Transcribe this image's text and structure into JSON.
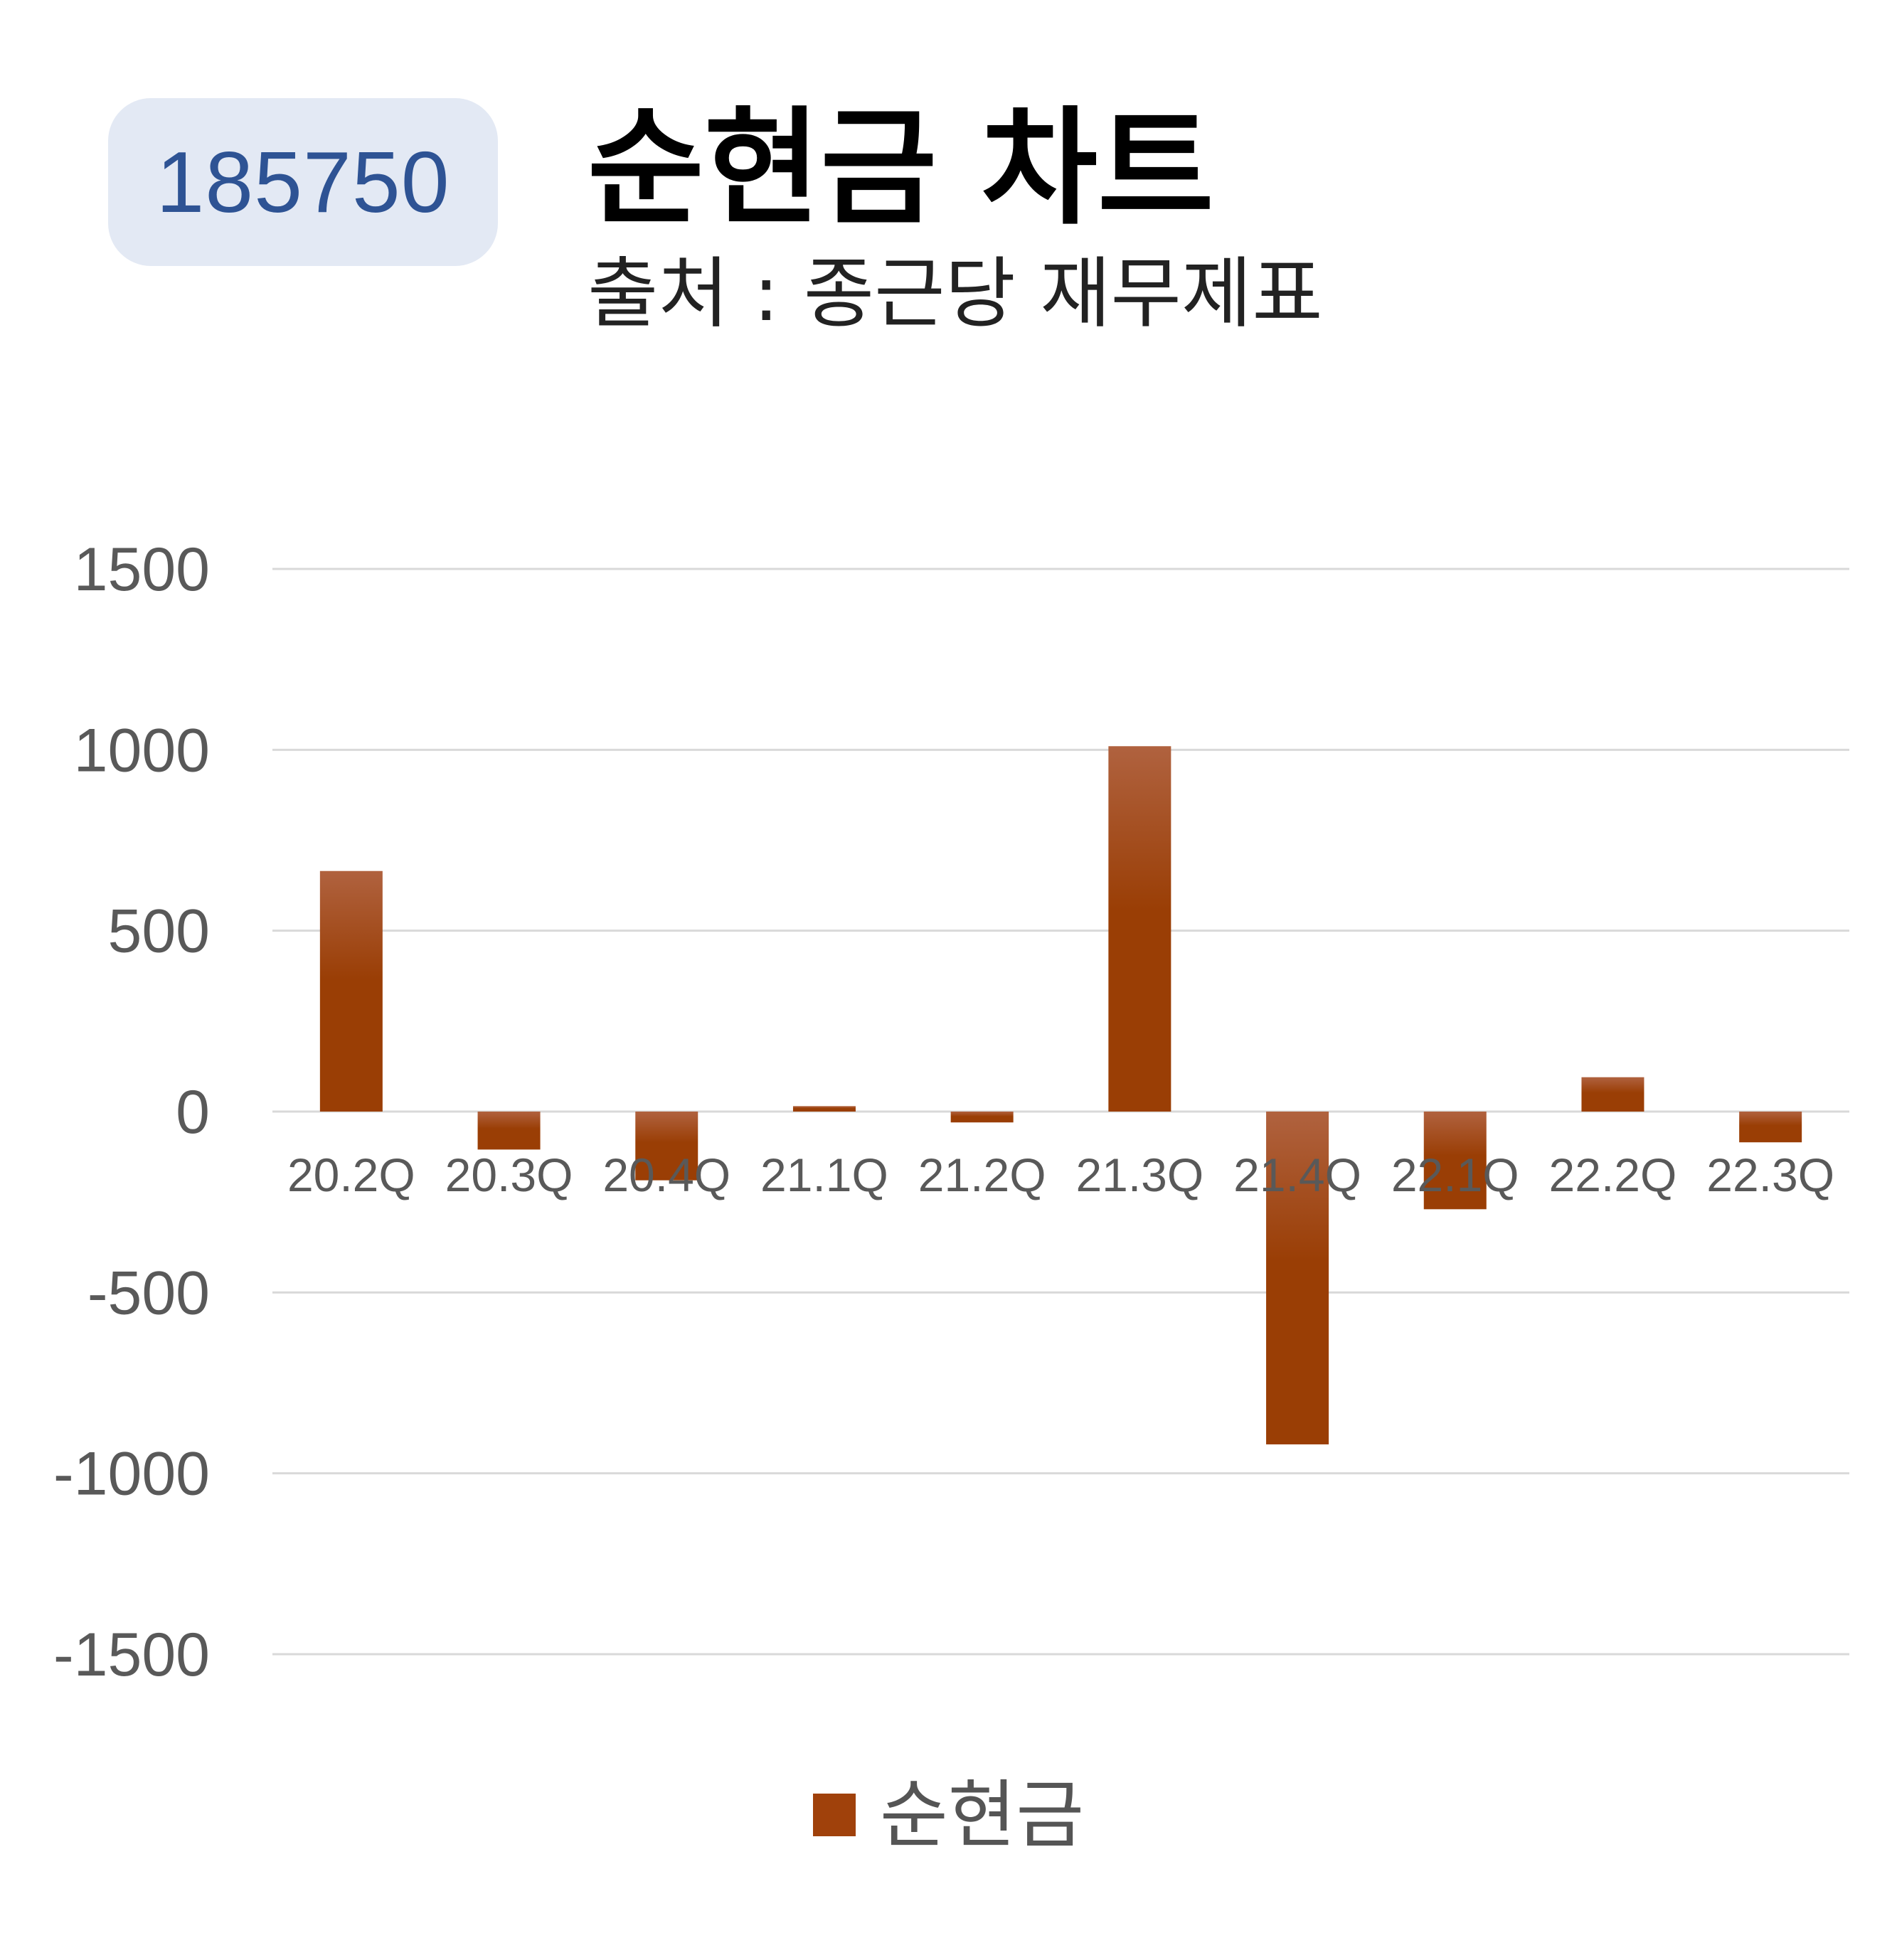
{
  "header": {
    "code": "185750",
    "title": "순현금 차트",
    "subtitle": "출처 : 종근당 재무제표"
  },
  "colors": {
    "bar_top": "#b0623f",
    "bar_bottom": "#9a3e05",
    "grid": "#d9d9d9",
    "tick_text": "#595959",
    "badge_bg": "#e3e9f4",
    "badge_text": "#2e5394"
  },
  "chart_data": {
    "type": "bar",
    "categories": [
      "20.2Q",
      "20.3Q",
      "20.4Q",
      "21.1Q",
      "21.2Q",
      "21.3Q",
      "21.4Q",
      "22.1Q",
      "22.2Q",
      "22.3Q"
    ],
    "series": [
      {
        "name": "순현금",
        "values": [
          665,
          -105,
          -190,
          15,
          -30,
          1010,
          -920,
          -270,
          95,
          -85
        ]
      }
    ],
    "ylim": [
      -1500,
      1500
    ],
    "yticks": [
      "1500",
      "1000",
      "500",
      "0",
      "-500",
      "-1000",
      "-1500"
    ],
    "grid": true,
    "legend_position": "bottom"
  }
}
